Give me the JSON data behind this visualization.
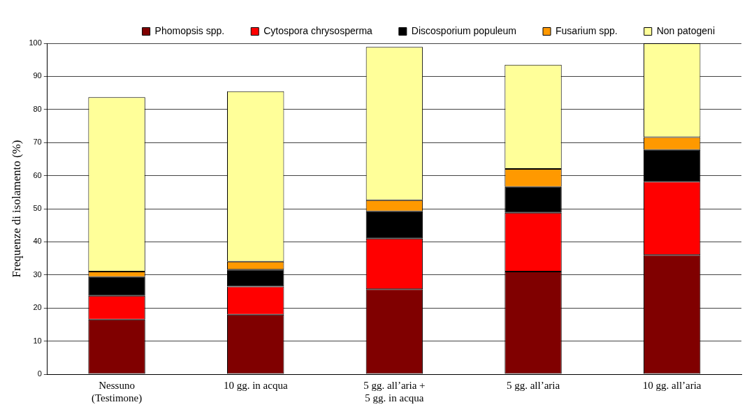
{
  "chart_data": {
    "type": "bar",
    "stacked": true,
    "ylabel": "Frequenze di isolamento (%)",
    "categories": [
      "Nessuno\n(Testimone)",
      "10 gg. in acqua",
      "5 gg. all’aria +\n5 gg. in acqua",
      "5 gg. all’aria",
      "10 gg. all’aria"
    ],
    "series": [
      {
        "name": "Phomopsis spp.",
        "color": "#800000",
        "values": [
          16.5,
          18,
          25.7,
          31,
          36
        ]
      },
      {
        "name": "Cytospora chrysosperma",
        "color": "#ff0000",
        "values": [
          7.2,
          8.5,
          15.3,
          17.8,
          22.2
        ]
      },
      {
        "name": "Discosporium populeum",
        "color": "#000000",
        "values": [
          5.7,
          5.1,
          8.2,
          7.8,
          9.6
        ]
      },
      {
        "name": "Fusarium spp.",
        "color": "#ff9900",
        "values": [
          1.6,
          2.4,
          3.4,
          5.4,
          3.8
        ]
      },
      {
        "name": "Non patogeni",
        "color": "#ffff99",
        "values": [
          52.7,
          51.5,
          46.3,
          31.5,
          28.4
        ]
      }
    ],
    "ylim": [
      0,
      100
    ],
    "yticks": [
      0,
      10,
      20,
      30,
      40,
      50,
      60,
      70,
      80,
      90,
      100
    ],
    "grid": "y",
    "legend": "top"
  }
}
